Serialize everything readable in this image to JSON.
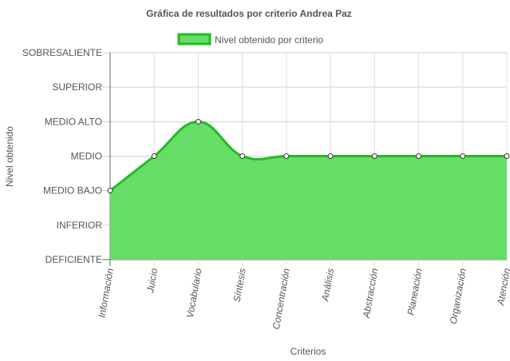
{
  "chart_data": {
    "type": "area",
    "title": "Gráfica de resultados por criterio Andrea Paz",
    "xlabel": "Criterios",
    "ylabel": "Nivel obtenido",
    "y_levels": [
      "DEFICIENTE",
      "INFERIOR",
      "MEDIO BAJO",
      "MEDIO",
      "MEDIO ALTO",
      "SUPERIOR",
      "SOBRESALIENTE"
    ],
    "categories": [
      "Información",
      "Juicio",
      "Vocabulario",
      "Síntesis",
      "Concentración",
      "Análisis",
      "Abstracción",
      "Planeación",
      "Organización",
      "Atención"
    ],
    "series": [
      {
        "name": "Nivel obtenido por criterio",
        "values": [
          "MEDIO BAJO",
          "MEDIO",
          "MEDIO ALTO",
          "MEDIO",
          "MEDIO",
          "MEDIO",
          "MEDIO",
          "MEDIO",
          "MEDIO",
          "MEDIO"
        ],
        "fill_color": "#66dd66",
        "line_color": "#22bb22"
      }
    ],
    "legend_position": "top",
    "grid": true
  }
}
